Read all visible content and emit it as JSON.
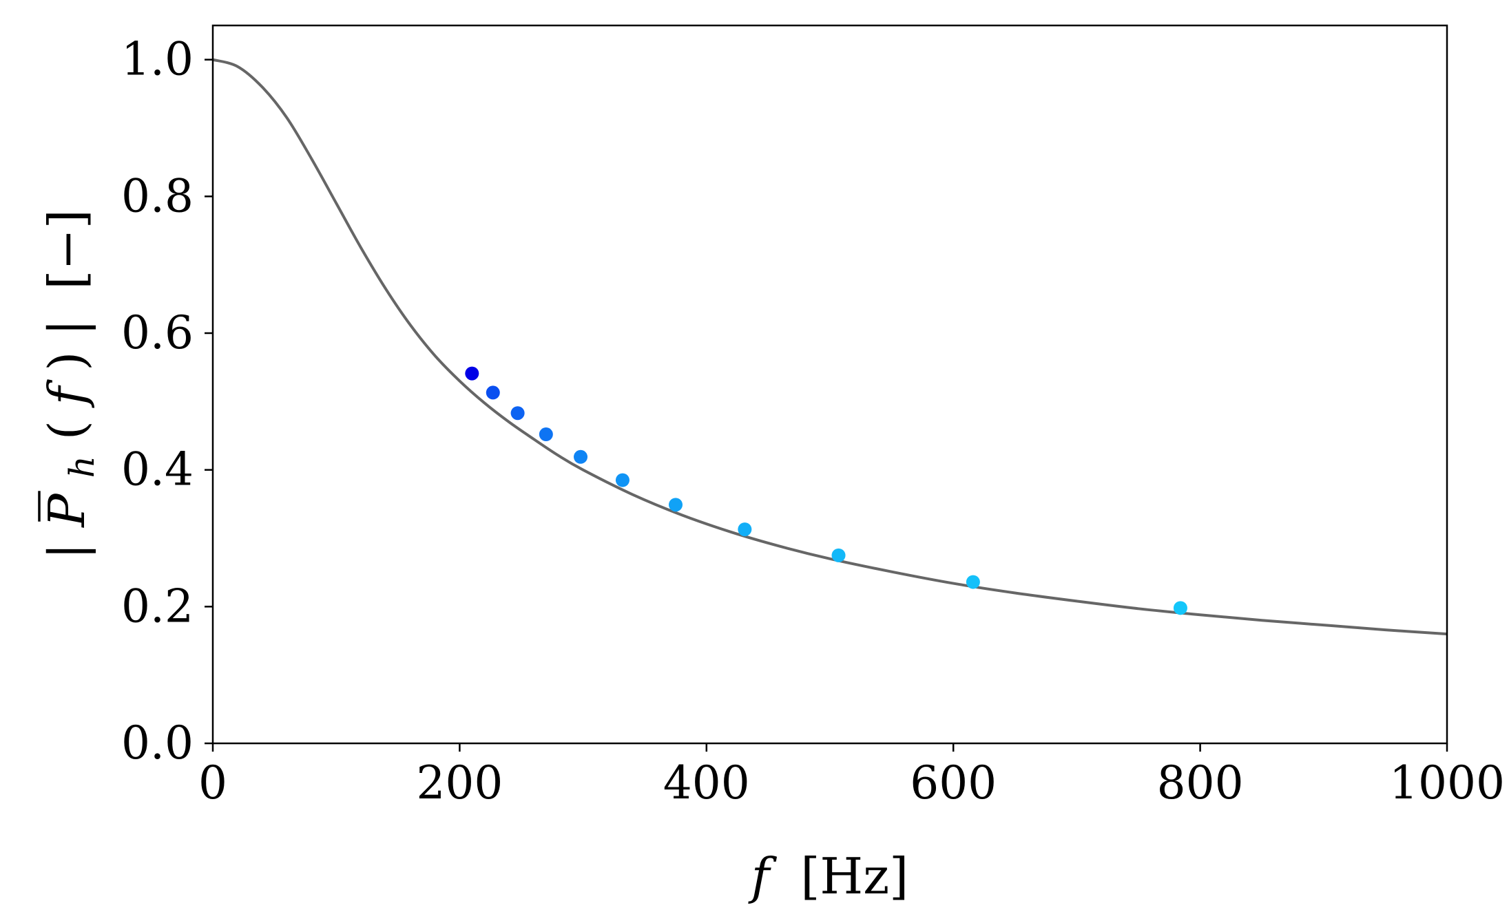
{
  "chart_data": {
    "type": "line",
    "title": "",
    "xlabel": {
      "symbol": "f",
      "unit": "[Hz]"
    },
    "ylabel": {
      "open": "|",
      "symbol": "P",
      "subscript": "h",
      "arg_open": "(",
      "arg": "f",
      "arg_close": ")",
      "close": "|",
      "unit": "[−]"
    },
    "xlim": [
      0,
      1000
    ],
    "ylim": [
      0,
      1.05
    ],
    "x_ticks": [
      0,
      200,
      400,
      600,
      800,
      1000
    ],
    "y_ticks": [
      0.0,
      0.2,
      0.4,
      0.6,
      0.8,
      1.0
    ],
    "x_tick_labels": [
      "0",
      "200",
      "400",
      "600",
      "800",
      "1000"
    ],
    "y_tick_labels": [
      "0.0",
      "0.2",
      "0.4",
      "0.6",
      "0.8",
      "1.0"
    ],
    "grid": false,
    "legend": "none",
    "series": [
      {
        "kind": "curve",
        "color": "#666666",
        "x": [
          0,
          20,
          40,
          60,
          80,
          100,
          120,
          140,
          160,
          180,
          200,
          220,
          240,
          260,
          280,
          300,
          340,
          380,
          420,
          460,
          500,
          550,
          600,
          650,
          700,
          750,
          800,
          850,
          900,
          950,
          1000
        ],
        "y": [
          1.0,
          0.99,
          0.96,
          0.915,
          0.855,
          0.79,
          0.725,
          0.665,
          0.612,
          0.567,
          0.53,
          0.498,
          0.47,
          0.445,
          0.421,
          0.4,
          0.364,
          0.334,
          0.309,
          0.288,
          0.27,
          0.251,
          0.234,
          0.22,
          0.208,
          0.197,
          0.188,
          0.18,
          0.173,
          0.166,
          0.16
        ]
      },
      {
        "kind": "points",
        "x": [
          210,
          227,
          247,
          270,
          298,
          332,
          375,
          431,
          507,
          616,
          784
        ],
        "y": [
          0.541,
          0.513,
          0.483,
          0.452,
          0.419,
          0.385,
          0.349,
          0.313,
          0.275,
          0.236,
          0.198
        ],
        "colors": [
          "#0000e6",
          "#0a4ff0",
          "#0d63f2",
          "#0e74f3",
          "#0f84f4",
          "#1094f5",
          "#11a2f6",
          "#12aef7",
          "#13b8f8",
          "#14c0f9",
          "#14c6fa"
        ]
      }
    ]
  },
  "colors": {
    "curve": "#666666",
    "axes": "#000000",
    "background": "#ffffff"
  }
}
